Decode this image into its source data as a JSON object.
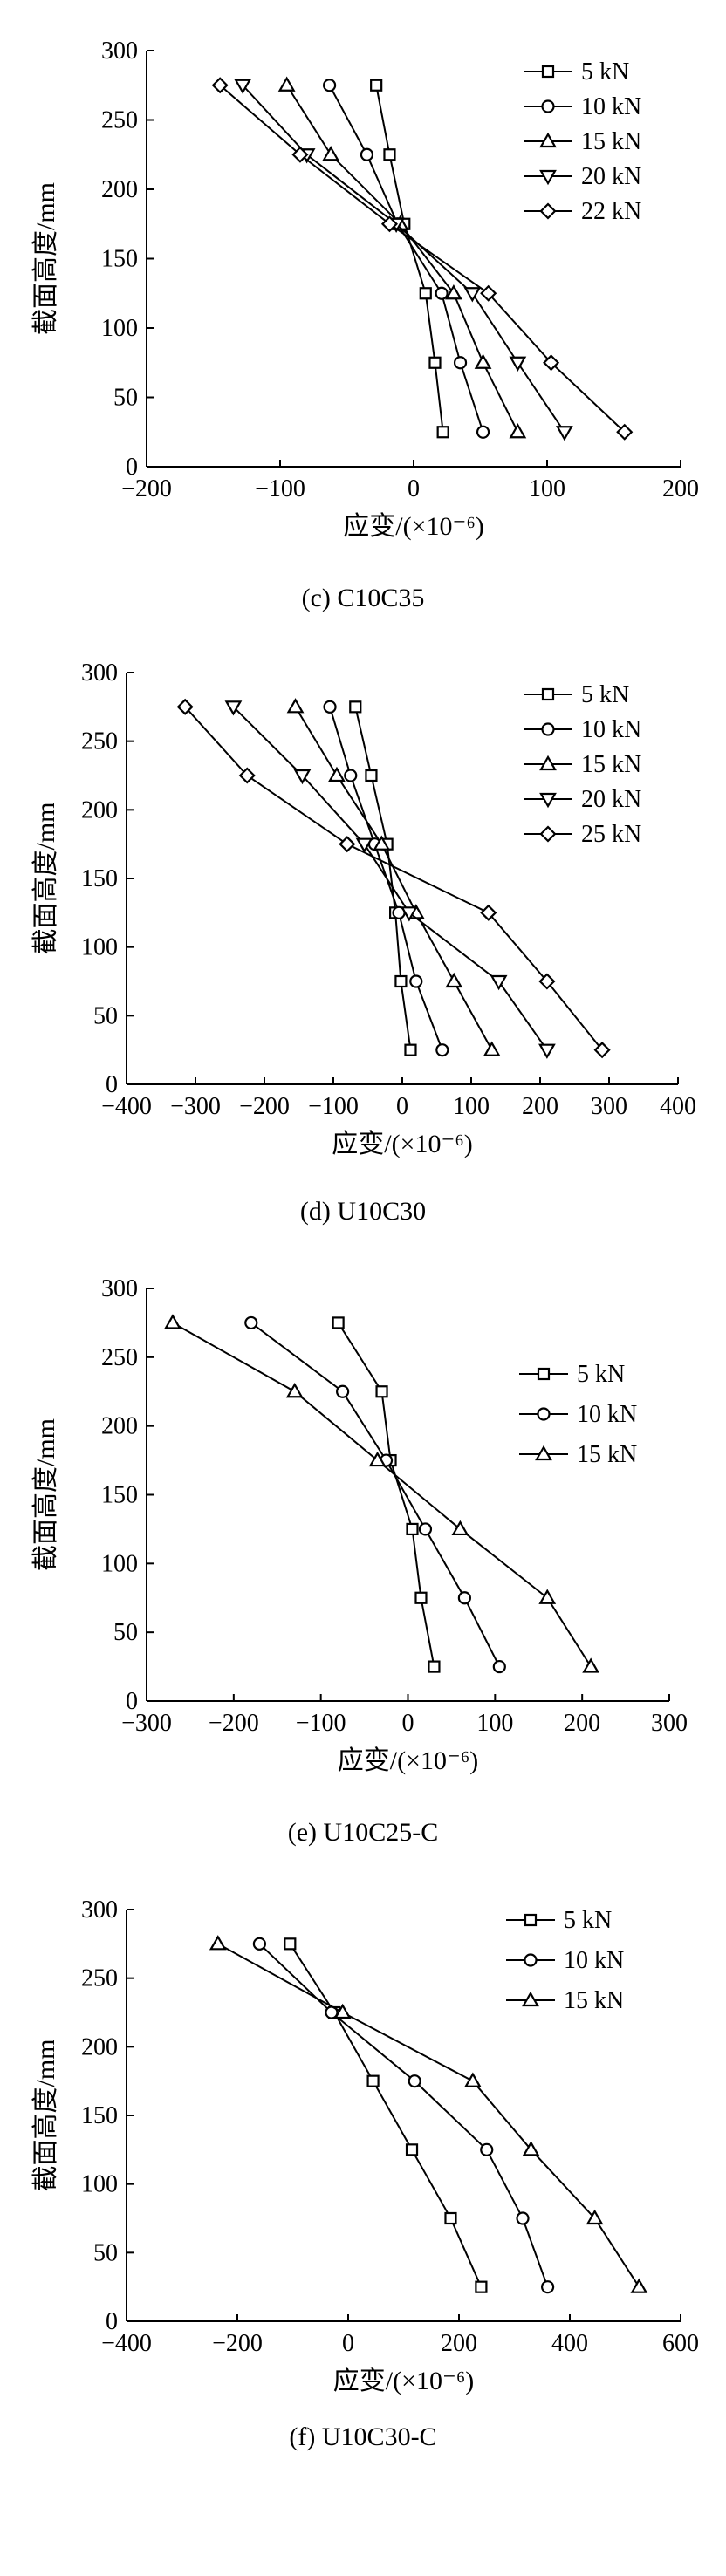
{
  "panels": [
    {
      "caption": "(c) C10C35",
      "chart_data": {
        "type": "line",
        "title": "",
        "xlabel": "应变/(×10⁻⁶)",
        "ylabel": "截面高度/mm",
        "xlim": [
          -200,
          200
        ],
        "ylim": [
          0,
          300
        ],
        "xticks": [
          -200,
          -100,
          0,
          100,
          200
        ],
        "yticks": [
          0,
          50,
          100,
          150,
          200,
          250,
          300
        ],
        "y": [
          25,
          75,
          125,
          175,
          225,
          275
        ],
        "legend_position": "top-right",
        "grid": false,
        "series": [
          {
            "name": "5 kN",
            "marker": "square",
            "x": [
              22,
              16,
              9,
              -7,
              -18,
              -28
            ]
          },
          {
            "name": "10 kN",
            "marker": "circle",
            "x": [
              52,
              35,
              21,
              -12,
              -35,
              -63
            ]
          },
          {
            "name": "15 kN",
            "marker": "triangle-up",
            "x": [
              78,
              52,
              30,
              -10,
              -62,
              -95
            ]
          },
          {
            "name": "20 kN",
            "marker": "triangle-down",
            "x": [
              113,
              78,
              44,
              -13,
              -80,
              -128
            ]
          },
          {
            "name": "22 kN",
            "marker": "diamond",
            "x": [
              158,
              103,
              56,
              -18,
              -85,
              -145
            ]
          }
        ]
      }
    },
    {
      "caption": "(d) U10C30",
      "chart_data": {
        "type": "line",
        "title": "",
        "xlabel": "应变/(×10⁻⁶)",
        "ylabel": "截面高度/mm",
        "xlim": [
          -400,
          400
        ],
        "ylim": [
          0,
          300
        ],
        "xticks": [
          -400,
          -300,
          -200,
          -100,
          0,
          100,
          200,
          300,
          400
        ],
        "yticks": [
          0,
          50,
          100,
          150,
          200,
          250,
          300
        ],
        "y": [
          25,
          75,
          125,
          175,
          225,
          275
        ],
        "legend_position": "top-right",
        "grid": false,
        "series": [
          {
            "name": "5 kN",
            "marker": "square",
            "x": [
              12,
              -2,
              -10,
              -22,
              -45,
              -68
            ]
          },
          {
            "name": "10 kN",
            "marker": "circle",
            "x": [
              58,
              20,
              -5,
              -40,
              -75,
              -105
            ]
          },
          {
            "name": "15 kN",
            "marker": "triangle-up",
            "x": [
              130,
              75,
              20,
              -30,
              -95,
              -155
            ]
          },
          {
            "name": "20 kN",
            "marker": "triangle-down",
            "x": [
              210,
              140,
              10,
              -55,
              -145,
              -245
            ]
          },
          {
            "name": "25 kN",
            "marker": "diamond",
            "x": [
              290,
              210,
              125,
              -80,
              -225,
              -315
            ]
          }
        ]
      }
    },
    {
      "caption": "(e) U10C25-C",
      "chart_data": {
        "type": "line",
        "title": "",
        "xlabel": "应变/(×10⁻⁶)",
        "ylabel": "截面高度/mm",
        "xlim": [
          -300,
          300
        ],
        "ylim": [
          0,
          300
        ],
        "xticks": [
          -300,
          -200,
          -100,
          0,
          100,
          200,
          300
        ],
        "yticks": [
          0,
          50,
          100,
          150,
          200,
          250,
          300
        ],
        "y": [
          25,
          75,
          125,
          175,
          225,
          275
        ],
        "legend_position": "top-right",
        "grid": false,
        "series": [
          {
            "name": "5 kN",
            "marker": "square",
            "x": [
              30,
              15,
              5,
              -20,
              -30,
              -80
            ]
          },
          {
            "name": "10 kN",
            "marker": "circle",
            "x": [
              105,
              65,
              20,
              -25,
              -75,
              -180
            ]
          },
          {
            "name": "15 kN",
            "marker": "triangle-up",
            "x": [
              210,
              160,
              60,
              -35,
              -130,
              -270
            ]
          }
        ]
      }
    },
    {
      "caption": "(f) U10C30-C",
      "chart_data": {
        "type": "line",
        "title": "",
        "xlabel": "应变/(×10⁻⁶)",
        "ylabel": "截面高度/mm",
        "xlim": [
          -400,
          600
        ],
        "ylim": [
          0,
          300
        ],
        "xticks": [
          -400,
          -200,
          0,
          200,
          400,
          600
        ],
        "yticks": [
          0,
          50,
          100,
          150,
          200,
          250,
          300
        ],
        "y": [
          25,
          75,
          125,
          175,
          225,
          275
        ],
        "legend_position": "top-right",
        "grid": false,
        "series": [
          {
            "name": "5 kN",
            "marker": "square",
            "x": [
              240,
              185,
              115,
              45,
              -25,
              -105
            ]
          },
          {
            "name": "10 kN",
            "marker": "circle",
            "x": [
              360,
              315,
              250,
              120,
              -30,
              -160
            ]
          },
          {
            "name": "15 kN",
            "marker": "triangle-up",
            "x": [
              525,
              445,
              330,
              225,
              -10,
              -235
            ]
          }
        ]
      }
    }
  ]
}
